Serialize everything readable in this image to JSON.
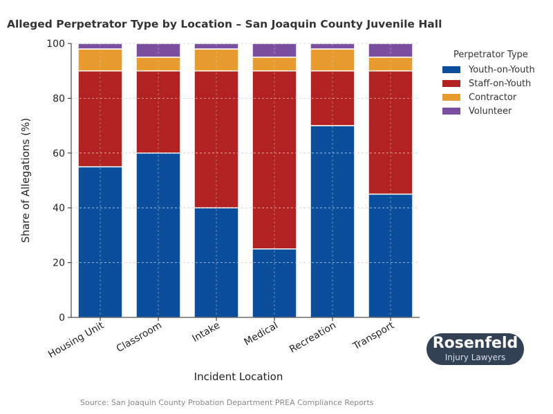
{
  "chart_data": {
    "type": "bar",
    "stacked": true,
    "title": "Alleged Perpetrator Type by Location – San Joaquin County Juvenile Hall",
    "xlabel": "Incident Location",
    "ylabel": "Share of Allegations (%)",
    "ylim": [
      0,
      100
    ],
    "yticks": [
      0,
      20,
      40,
      60,
      80,
      100
    ],
    "grid": true,
    "legend_title": "Perpetrator Type",
    "legend_position": "right",
    "categories": [
      "Housing Unit",
      "Classroom",
      "Intake",
      "Medical",
      "Recreation",
      "Transport"
    ],
    "series": [
      {
        "name": "Youth-on-Youth",
        "color": "#0b4f9c",
        "values": [
          55,
          60,
          40,
          25,
          70,
          45
        ]
      },
      {
        "name": "Staff-on-Youth",
        "color": "#b22222",
        "values": [
          35,
          30,
          50,
          65,
          20,
          45
        ]
      },
      {
        "name": "Contractor",
        "color": "#e89c30",
        "values": [
          8,
          5,
          8,
          5,
          8,
          5
        ]
      },
      {
        "name": "Volunteer",
        "color": "#7b4fa0",
        "values": [
          2,
          5,
          2,
          5,
          2,
          5
        ]
      }
    ]
  },
  "source": "Source: San Joaquin County Probation Department PREA Compliance Reports",
  "logo": {
    "line1": "Rosenfeld",
    "line2": "Injury Lawyers"
  }
}
